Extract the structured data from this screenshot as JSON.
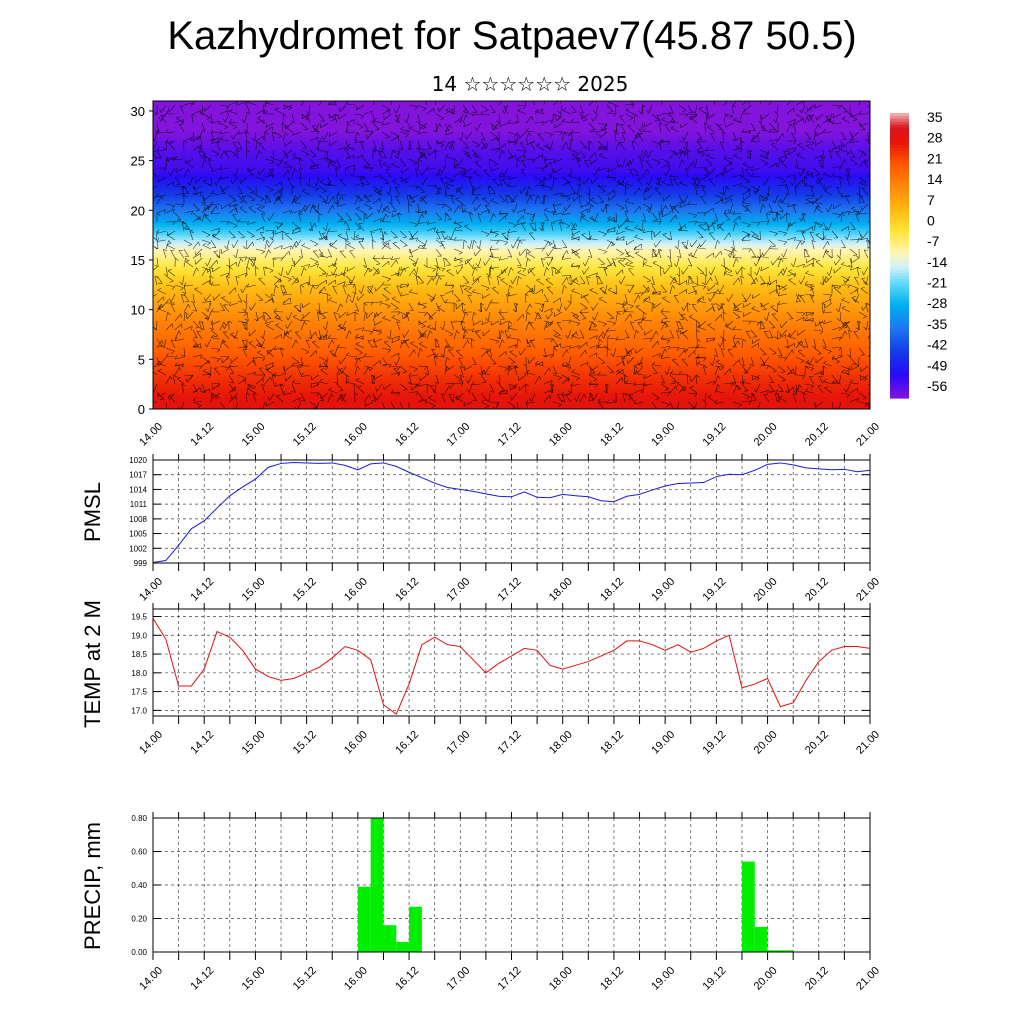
{
  "title": "Kazhydromet for Satpaev7(45.87 50.5)",
  "subtitle": "14 ☆☆☆☆☆☆ 2025",
  "x_tick_labels": [
    "14.00",
    "14.12",
    "15.00",
    "15.12",
    "16.00",
    "16.12",
    "17.00",
    "17.12",
    "18.00",
    "18.12",
    "19.00",
    "19.12",
    "20.00",
    "20.12",
    "21.00"
  ],
  "colors": {
    "pmsl_line": "#1a1adb",
    "temp_line": "#e01010",
    "precip_bar": "#00ee00"
  },
  "chart_data": [
    {
      "type": "heatmap",
      "title": "",
      "ylabel": "",
      "x_labels": [
        "14.00",
        "14.12",
        "15.00",
        "15.12",
        "16.00",
        "16.12",
        "17.00",
        "17.12",
        "18.00",
        "18.12",
        "19.00",
        "19.12",
        "20.00",
        "20.12",
        "21.00"
      ],
      "y_ticks": [
        0,
        5,
        10,
        15,
        20,
        25,
        30
      ],
      "ylim": [
        0,
        31
      ],
      "colorbar_labels": [
        "35",
        "28",
        "21",
        "14",
        "7",
        "0",
        "-7",
        "-14",
        "-21",
        "-28",
        "-35",
        "-42",
        "-49",
        "-56"
      ],
      "colorbar_range": [
        -60,
        38
      ],
      "profile": {
        "levels": [
          0,
          3,
          6,
          9,
          12,
          14,
          16,
          18,
          20,
          22,
          24,
          26,
          28,
          31
        ],
        "values": [
          30,
          25,
          19,
          13,
          5,
          -2,
          -10,
          -24,
          -36,
          -46,
          -54,
          -56,
          -60,
          -62
        ]
      },
      "overlay": "wind barbs"
    },
    {
      "type": "line",
      "ylabel": "PMSL",
      "x_labels": [
        "14.00",
        "14.12",
        "15.00",
        "15.12",
        "16.00",
        "16.12",
        "17.00",
        "17.12",
        "18.00",
        "18.12",
        "19.00",
        "19.12",
        "20.00",
        "20.12",
        "21.00"
      ],
      "y_ticks": [
        999,
        1002,
        1005,
        1008,
        1011,
        1014,
        1017,
        1020
      ],
      "ylim": [
        999,
        1020
      ],
      "x_hours": [
        0,
        3,
        6,
        9,
        12,
        15,
        18,
        21,
        24,
        27,
        30,
        33,
        36,
        39,
        42,
        45,
        48,
        51,
        54,
        57,
        60,
        63,
        66,
        69,
        72,
        75,
        78,
        81,
        84,
        87,
        90,
        93,
        96,
        99,
        102,
        105,
        108,
        111,
        114,
        117,
        120,
        123,
        126,
        129,
        132,
        135,
        138,
        141,
        144,
        147,
        150,
        153,
        156,
        159,
        162,
        165,
        168
      ],
      "values": [
        999.1,
        999.5,
        1002.6,
        1006.0,
        1007.6,
        1010.2,
        1012.7,
        1014.5,
        1016.1,
        1018.5,
        1019.3,
        1019.5,
        1019.4,
        1019.3,
        1019.4,
        1018.9,
        1018.0,
        1019.2,
        1019.4,
        1018.7,
        1017.5,
        1016.4,
        1015.3,
        1014.4,
        1014.0,
        1013.6,
        1013.1,
        1012.6,
        1012.5,
        1013.5,
        1012.4,
        1012.3,
        1013.0,
        1012.7,
        1012.5,
        1011.7,
        1011.5,
        1012.6,
        1013.0,
        1013.9,
        1014.7,
        1015.2,
        1015.3,
        1015.4,
        1016.6,
        1017.1,
        1017.0,
        1017.9,
        1019.1,
        1019.4,
        1019.0,
        1018.4,
        1018.2,
        1018.0,
        1018.1,
        1017.6,
        1017.9
      ]
    },
    {
      "type": "line",
      "ylabel": "TEMP at 2 M",
      "x_labels": [
        "14.00",
        "14.12",
        "15.00",
        "15.12",
        "16.00",
        "16.12",
        "17.00",
        "17.12",
        "18.00",
        "18.12",
        "19.00",
        "19.12",
        "20.00",
        "20.12",
        "21.00"
      ],
      "y_ticks": [
        "17.0",
        "17.5",
        "18.0",
        "18.5",
        "19.0",
        "19.5"
      ],
      "ylim": [
        16.85,
        19.7
      ],
      "x_hours": [
        0,
        3,
        6,
        9,
        12,
        15,
        18,
        21,
        24,
        27,
        30,
        33,
        36,
        39,
        42,
        45,
        48,
        51,
        54,
        57,
        60,
        63,
        66,
        69,
        72,
        75,
        78,
        81,
        84,
        87,
        90,
        93,
        96,
        99,
        102,
        105,
        108,
        111,
        114,
        117,
        120,
        123,
        126,
        129,
        132,
        135,
        138,
        141,
        144,
        147,
        150,
        153,
        156,
        159,
        162,
        165,
        168
      ],
      "values": [
        19.45,
        18.9,
        17.65,
        17.65,
        18.1,
        19.1,
        18.95,
        18.6,
        18.1,
        17.9,
        17.8,
        17.85,
        18.0,
        18.15,
        18.4,
        18.7,
        18.6,
        18.35,
        17.15,
        16.9,
        17.7,
        18.75,
        18.95,
        18.75,
        18.7,
        18.35,
        18.0,
        18.25,
        18.45,
        18.65,
        18.6,
        18.2,
        18.1,
        18.2,
        18.3,
        18.45,
        18.6,
        18.85,
        18.85,
        18.75,
        18.6,
        18.75,
        18.55,
        18.65,
        18.85,
        19.0,
        17.6,
        17.7,
        17.85,
        17.1,
        17.2,
        17.8,
        18.3,
        18.6,
        18.7,
        18.7,
        18.65
      ]
    },
    {
      "type": "bar",
      "ylabel": "PRECIP, mm",
      "x_labels": [
        "14.00",
        "14.12",
        "15.00",
        "15.12",
        "16.00",
        "16.12",
        "17.00",
        "17.12",
        "18.00",
        "18.12",
        "19.00",
        "19.12",
        "20.00",
        "20.12",
        "21.00"
      ],
      "y_ticks": [
        "0.00",
        "0.20",
        "0.40",
        "0.60",
        "0.80"
      ],
      "ylim": [
        0,
        0.8
      ],
      "bar_hours": [
        48,
        51,
        54,
        57,
        60,
        63,
        138,
        141,
        144,
        147
      ],
      "values": [
        0.39,
        0.8,
        0.16,
        0.06,
        0.27,
        0.0,
        0.54,
        0.15,
        0.01,
        0.01
      ]
    }
  ]
}
